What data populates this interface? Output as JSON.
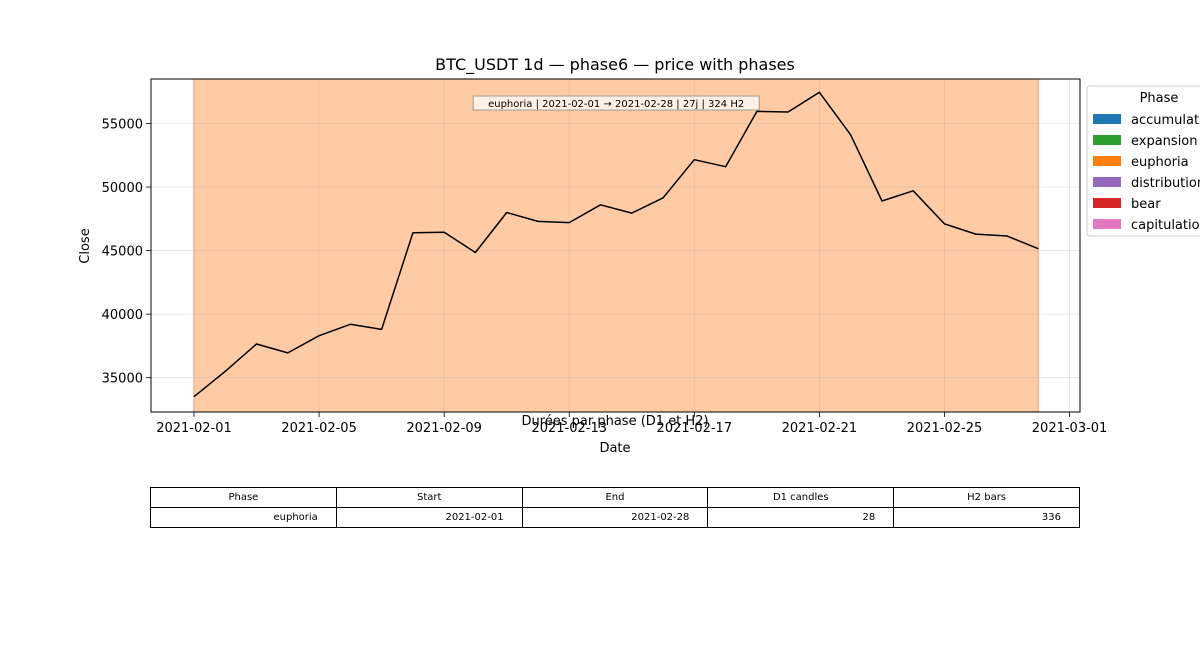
{
  "chart_data": {
    "type": "line",
    "title": "BTC_USDT 1d — phase6 — price with phases",
    "xlabel": "Date",
    "ylabel": "Close",
    "x_ticks": [
      "2021-02-01",
      "2021-02-05",
      "2021-02-09",
      "2021-02-13",
      "2021-02-17",
      "2021-02-21",
      "2021-02-25",
      "2021-03-01"
    ],
    "y_ticks": [
      35000,
      40000,
      45000,
      50000,
      55000
    ],
    "ylim": [
      32300,
      58500
    ],
    "xlim": [
      "2021-01-30T15:00",
      "2021-03-01T08:00"
    ],
    "grid": true,
    "legend_title": "Phase",
    "legend_position": "outside-right",
    "legend": [
      {
        "name": "accumulation",
        "color": "#1f77b4"
      },
      {
        "name": "expansion",
        "color": "#2ca02c"
      },
      {
        "name": "euphoria",
        "color": "#ff7f0e"
      },
      {
        "name": "distribution",
        "color": "#9467bd"
      },
      {
        "name": "bear",
        "color": "#d62728"
      },
      {
        "name": "capitulation",
        "color": "#e377c2"
      }
    ],
    "phase_spans": [
      {
        "phase": "euphoria",
        "start": "2021-02-01",
        "end": "2021-02-28",
        "color": "#ffcba4",
        "label": "euphoria | 2021-02-01 → 2021-02-28 | 27j | 324 H2"
      }
    ],
    "series": [
      {
        "color": "#000000",
        "x": [
          "2021-02-01",
          "2021-02-02",
          "2021-02-03",
          "2021-02-04",
          "2021-02-05",
          "2021-02-06",
          "2021-02-07",
          "2021-02-08",
          "2021-02-09",
          "2021-02-10",
          "2021-02-11",
          "2021-02-12",
          "2021-02-13",
          "2021-02-14",
          "2021-02-15",
          "2021-02-16",
          "2021-02-17",
          "2021-02-18",
          "2021-02-19",
          "2021-02-20",
          "2021-02-21",
          "2021-02-22",
          "2021-02-23",
          "2021-02-24",
          "2021-02-25",
          "2021-02-26",
          "2021-02-27",
          "2021-02-28"
        ],
        "values": [
          33500,
          35500,
          37650,
          36950,
          38300,
          39200,
          38800,
          46400,
          46450,
          44850,
          48000,
          47300,
          47200,
          48600,
          47950,
          49150,
          52150,
          51600,
          55950,
          55900,
          57450,
          54100,
          48900,
          49700,
          47100,
          46300,
          46150,
          45150
        ]
      }
    ]
  },
  "table": {
    "title": "Durées par phase (D1 et H2)",
    "headers": [
      "Phase",
      "Start",
      "End",
      "D1 candles",
      "H2 bars"
    ],
    "rows": [
      [
        "euphoria",
        "2021-02-01",
        "2021-02-28",
        "28",
        "336"
      ]
    ]
  }
}
